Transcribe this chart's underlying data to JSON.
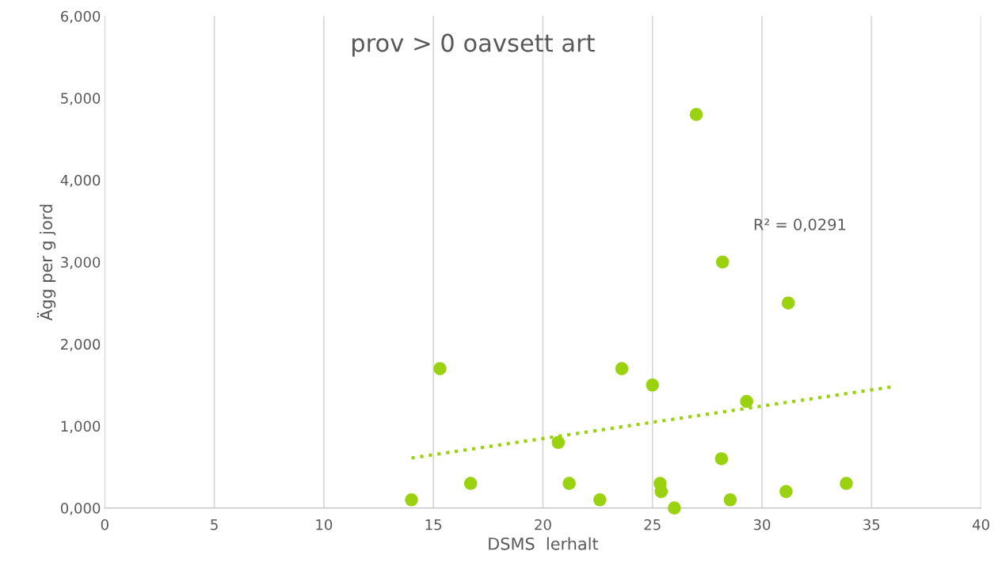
{
  "chart_data": {
    "type": "scatter",
    "title": "prov > 0 oavsett art",
    "xlabel": "DSMS  lerhalt",
    "ylabel": "Ägg per g jord",
    "annotations": [
      "R² = 0,0291"
    ],
    "series": [
      {
        "color": "#9ad20f",
        "marker": "circle",
        "x": [
          14.0,
          15.3,
          16.7,
          20.7,
          21.2,
          22.6,
          23.6,
          25.0,
          25.35,
          25.4,
          26.0,
          27.0,
          28.2,
          28.15,
          28.55,
          29.3,
          31.1,
          31.2,
          33.85
        ],
        "values": [
          0.1,
          1.7,
          0.3,
          0.8,
          0.3,
          0.1,
          1.7,
          1.5,
          0.3,
          0.2,
          0,
          4.8,
          3.0,
          0.6,
          0.1,
          1.3,
          0.2,
          2.5,
          0.3
        ]
      },
      {
        "type": "line",
        "color": "#9ad20f",
        "line_style": "dotted",
        "x": [
          14,
          36
        ],
        "values": [
          0.61,
          1.48
        ]
      }
    ],
    "xlim": [
      0,
      40
    ],
    "xticks": [
      0,
      5,
      10,
      15,
      20,
      25,
      30,
      35,
      40
    ],
    "ylim": [
      0,
      6
    ],
    "yticks": [
      {
        "value": 0,
        "label": "0,000"
      },
      {
        "value": 1,
        "label": "1,000"
      },
      {
        "value": 2,
        "label": "2,000"
      },
      {
        "value": 3,
        "label": "3,000"
      },
      {
        "value": 4,
        "label": "4,000"
      },
      {
        "value": 5,
        "label": "5,000"
      },
      {
        "value": 6,
        "label": "6,000"
      }
    ],
    "grid": "x"
  }
}
